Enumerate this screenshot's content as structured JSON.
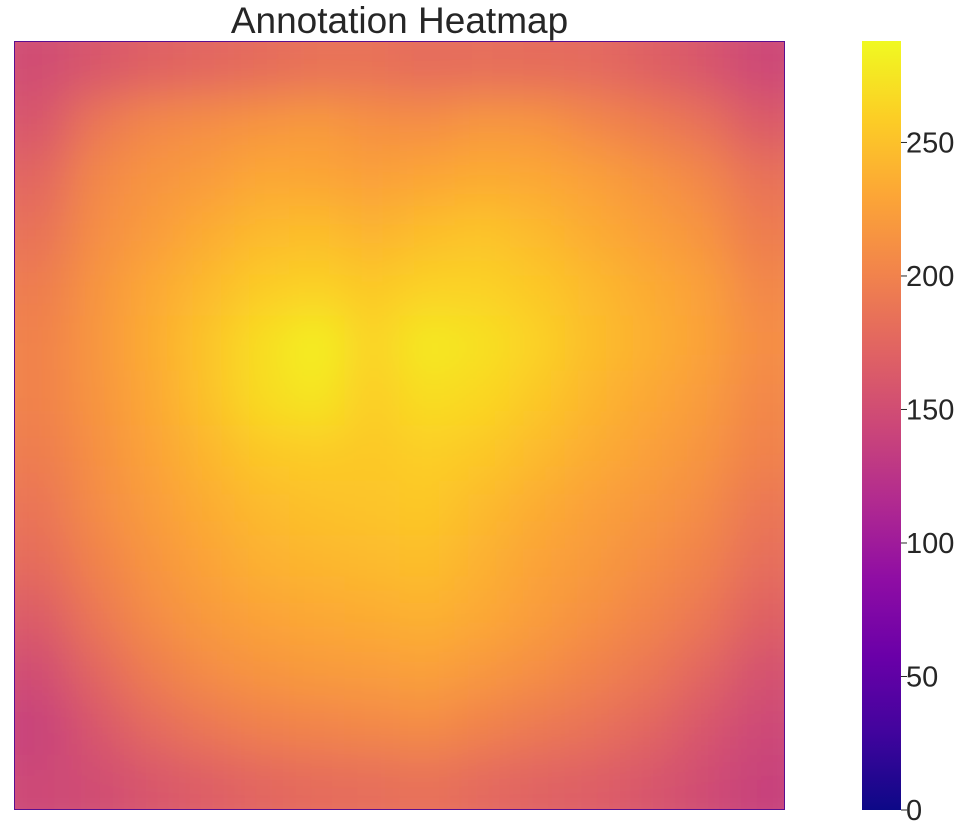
{
  "chart_data": {
    "type": "heatmap",
    "title": "Annotation Heatmap",
    "colormap": "plasma",
    "vmin": 0,
    "vmax": 288,
    "grid": false,
    "colorbar": {
      "position": "right",
      "ticks": [
        0,
        50,
        100,
        150,
        200,
        250
      ],
      "tick_labels": [
        "0",
        "50",
        "100",
        "150",
        "200",
        "250"
      ]
    },
    "x_tick_labels": [],
    "y_tick_labels": [],
    "values": [
      [
        150,
        160,
        170,
        175,
        180,
        185,
        185,
        180,
        182,
        180,
        178,
        170,
        160,
        145
      ],
      [
        160,
        190,
        205,
        210,
        215,
        220,
        212,
        210,
        218,
        215,
        205,
        195,
        185,
        165
      ],
      [
        175,
        205,
        215,
        222,
        232,
        230,
        225,
        230,
        235,
        232,
        225,
        215,
        205,
        185
      ],
      [
        185,
        210,
        222,
        235,
        245,
        248,
        240,
        248,
        252,
        245,
        235,
        225,
        215,
        195
      ],
      [
        195,
        215,
        232,
        245,
        258,
        262,
        255,
        262,
        262,
        255,
        245,
        235,
        225,
        205
      ],
      [
        200,
        218,
        235,
        252,
        270,
        282,
        262,
        278,
        272,
        262,
        248,
        238,
        228,
        210
      ],
      [
        200,
        215,
        232,
        250,
        268,
        275,
        258,
        270,
        265,
        255,
        242,
        232,
        222,
        205
      ],
      [
        195,
        212,
        228,
        242,
        255,
        258,
        255,
        260,
        255,
        245,
        235,
        225,
        215,
        200
      ],
      [
        188,
        208,
        222,
        235,
        245,
        250,
        252,
        255,
        245,
        235,
        225,
        218,
        208,
        190
      ],
      [
        180,
        200,
        215,
        228,
        238,
        242,
        245,
        248,
        238,
        228,
        220,
        210,
        200,
        182
      ],
      [
        165,
        190,
        208,
        220,
        228,
        232,
        235,
        238,
        232,
        222,
        212,
        202,
        190,
        170
      ],
      [
        150,
        175,
        195,
        208,
        215,
        220,
        222,
        225,
        218,
        210,
        200,
        190,
        175,
        155
      ],
      [
        140,
        160,
        178,
        190,
        198,
        202,
        205,
        208,
        200,
        192,
        185,
        175,
        160,
        145
      ],
      [
        145,
        150,
        160,
        168,
        175,
        180,
        182,
        185,
        178,
        172,
        168,
        160,
        150,
        140
      ]
    ]
  }
}
